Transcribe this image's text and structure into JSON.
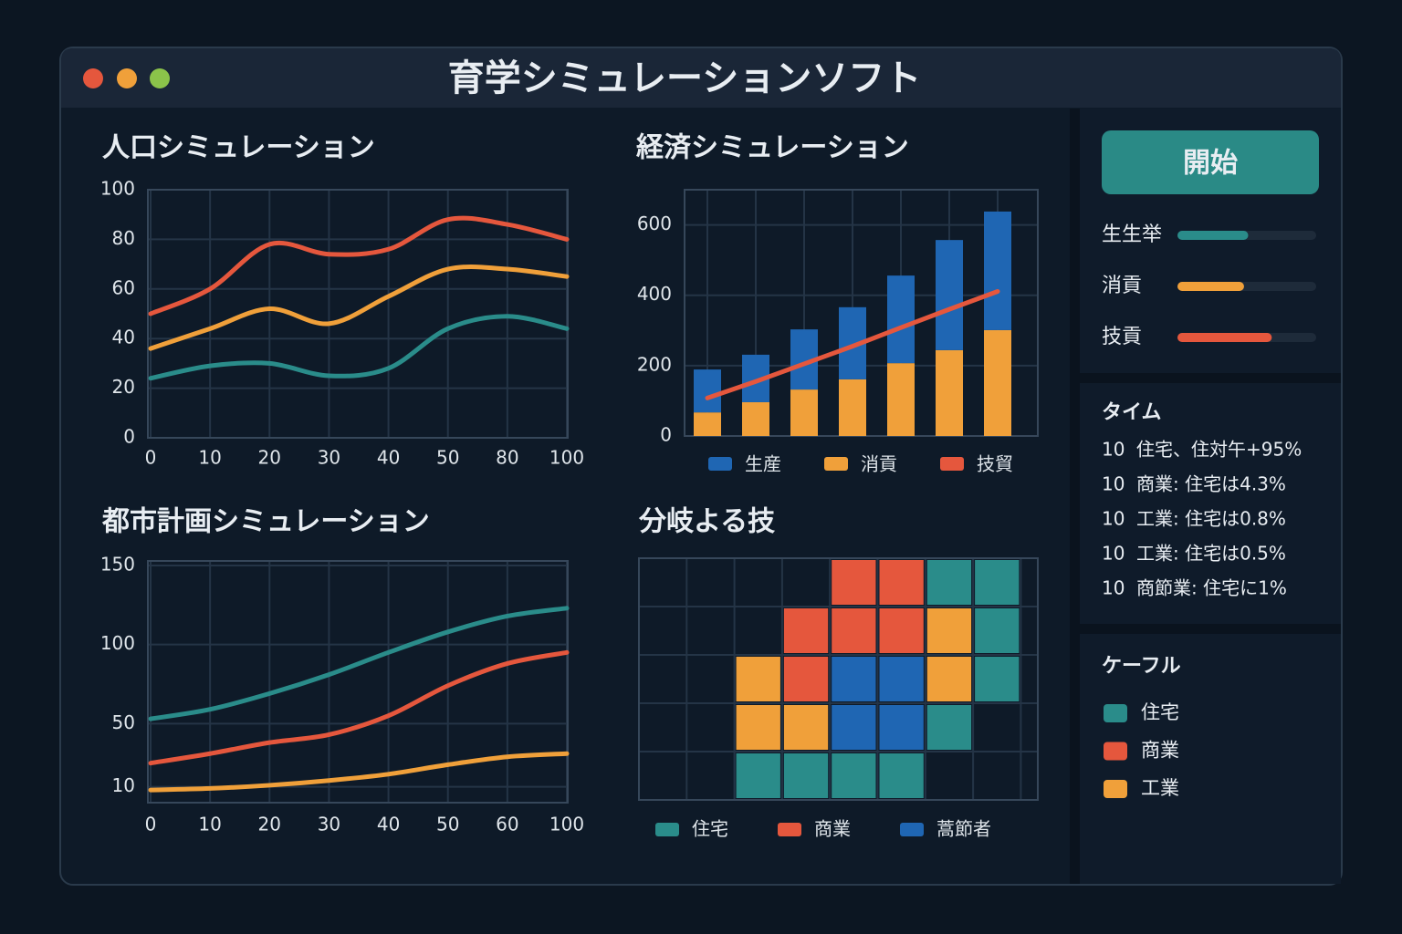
{
  "window": {
    "title": "育学シミュレーションソフト"
  },
  "chart_data": [
    {
      "type": "line",
      "title": "人口シミュレーション",
      "categories": [
        0,
        10,
        20,
        30,
        40,
        50,
        80,
        100
      ],
      "series": [
        {
          "color": "#e5573d",
          "values": [
            50,
            60,
            78,
            74,
            76,
            88,
            86,
            80
          ]
        },
        {
          "color": "#f0a03a",
          "values": [
            36,
            44,
            52,
            46,
            57,
            68,
            68,
            65
          ]
        },
        {
          "color": "#2a8c8a",
          "values": [
            24,
            29,
            30,
            25,
            28,
            44,
            49,
            44
          ]
        }
      ],
      "ylim": [
        0,
        100
      ],
      "yticks": [
        0,
        20,
        40,
        60,
        80,
        100
      ],
      "grid": true
    },
    {
      "type": "bar",
      "stacked": true,
      "title": "経済シミュレーション",
      "categories": [
        null,
        null,
        null,
        null,
        null,
        null,
        null
      ],
      "series": [
        {
          "name": "生産",
          "color": "#1f66b3",
          "values": [
            122,
            135,
            171,
            205,
            249,
            313,
            337
          ]
        },
        {
          "name": "消貢",
          "color": "#f0a03a",
          "values": [
            67,
            96,
            132,
            161,
            207,
            244,
            301
          ]
        },
        {
          "name": "技貿",
          "type": "line",
          "color": "#e5573d",
          "values": [
            108,
            155,
            205,
            255,
            308,
            360,
            411
          ]
        }
      ],
      "ylim": [
        0,
        700
      ],
      "yticks": [
        0,
        200,
        400,
        600
      ],
      "grid": true
    },
    {
      "type": "line",
      "title": "都市計画シミュレーション",
      "categories": [
        0,
        10,
        20,
        30,
        40,
        50,
        60,
        100
      ],
      "series": [
        {
          "color": "#2a8c8a",
          "values": [
            53,
            59,
            69,
            81,
            95,
            108,
            118,
            123
          ]
        },
        {
          "color": "#e5573d",
          "values": [
            25,
            31,
            38,
            43,
            55,
            74,
            88,
            95
          ]
        },
        {
          "color": "#f0a03a",
          "values": [
            8,
            9,
            11,
            14,
            18,
            24,
            29,
            31
          ]
        }
      ],
      "ylim": [
        0,
        150
      ],
      "yticks": [
        10,
        50,
        100,
        150
      ],
      "grid": true
    },
    {
      "type": "tile",
      "title": "分岐よる技",
      "cells": [
        [
          null,
          null,
          null,
          null,
          "#e5573d",
          "#e5573d",
          "#2a8c8a",
          "#2a8c8a"
        ],
        [
          null,
          null,
          null,
          "#e5573d",
          "#e5573d",
          "#e5573d",
          "#f0a03a",
          "#2a8c8a"
        ],
        [
          null,
          null,
          "#f0a03a",
          "#e5573d",
          "#1f66b3",
          "#1f66b3",
          "#f0a03a",
          "#2a8c8a"
        ],
        [
          null,
          null,
          "#f0a03a",
          "#f0a03a",
          "#1f66b3",
          "#1f66b3",
          "#2a8c8a",
          null
        ],
        [
          null,
          null,
          "#2a8c8a",
          "#2a8c8a",
          "#2a8c8a",
          "#2a8c8a",
          null,
          null
        ]
      ],
      "legend": [
        {
          "name": "住宅",
          "color": "#2a8c8a"
        },
        {
          "name": "商業",
          "color": "#e5573d"
        },
        {
          "name": "蒿節者",
          "color": "#1f66b3"
        }
      ]
    }
  ],
  "sidebar": {
    "button": "開始",
    "slider_range": [
      0,
      100
    ],
    "sliders": [
      {
        "label": "生生举",
        "color": "#2a8c8a",
        "value": 51
      },
      {
        "label": "消貢",
        "color": "#f0a03a",
        "value": 48
      },
      {
        "label": "技貢",
        "color": "#e5573d",
        "value": 68
      }
    ],
    "time": {
      "title": "タイム",
      "rows": [
        {
          "count": "10",
          "text": "住宅、住対午+95%"
        },
        {
          "count": "10",
          "text": "商業: 住宅は4.3%"
        },
        {
          "count": "10",
          "text": "工業: 住宅は0.8%"
        },
        {
          "count": "10",
          "text": "工業: 住宅は0.5%"
        },
        {
          "count": "10",
          "text": "商節業: 住宅に1%"
        }
      ]
    },
    "legend": {
      "title": "ケーフル",
      "items": [
        {
          "name": "住宅",
          "color": "#2a8c8a"
        },
        {
          "name": "商業",
          "color": "#e5573d"
        },
        {
          "name": "工業",
          "color": "#f0a03a"
        }
      ]
    }
  }
}
